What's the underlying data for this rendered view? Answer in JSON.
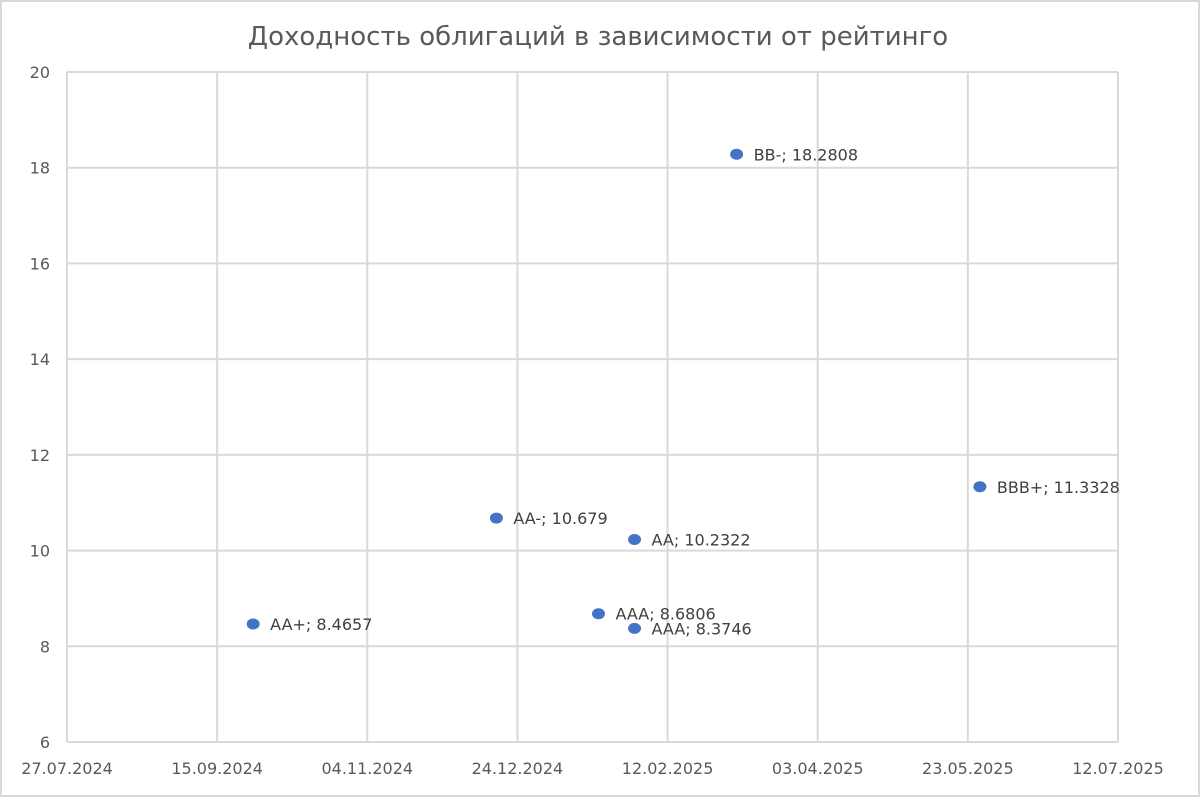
{
  "chart_data": {
    "type": "scatter",
    "title": "Доходность облигаций в зависимости от рейтинго",
    "xlabel": "",
    "ylabel": "",
    "x_axis": {
      "type": "date",
      "range": [
        "27.07.2024",
        "12.07.2025"
      ],
      "ticks": [
        "27.07.2024",
        "15.09.2024",
        "04.11.2024",
        "24.12.2024",
        "12.02.2025",
        "03.04.2025",
        "23.05.2025",
        "12.07.2025"
      ]
    },
    "y_axis": {
      "range": [
        6,
        20
      ],
      "ticks": [
        "6",
        "8",
        "10",
        "12",
        "14",
        "16",
        "18",
        "20"
      ]
    },
    "grid": true,
    "legend": "none",
    "marker_color": "#4472c4",
    "points": [
      {
        "x": "2024-09-27",
        "y": 8.4657,
        "label": "AA+; 8.4657"
      },
      {
        "x": "2024-12-17",
        "y": 10.679,
        "label": "AA-; 10.679"
      },
      {
        "x": "2025-01-20",
        "y": 8.6806,
        "label": "AAA; 8.6806"
      },
      {
        "x": "2025-02-01",
        "y": 8.3746,
        "label": "AAA; 8.3746"
      },
      {
        "x": "2025-02-01",
        "y": 10.2322,
        "label": "AA; 10.2322"
      },
      {
        "x": "2025-03-07",
        "y": 18.2808,
        "label": "BB-; 18.2808"
      },
      {
        "x": "2025-05-27",
        "y": 11.3328,
        "label": "BBB+; 11.3328"
      }
    ]
  }
}
